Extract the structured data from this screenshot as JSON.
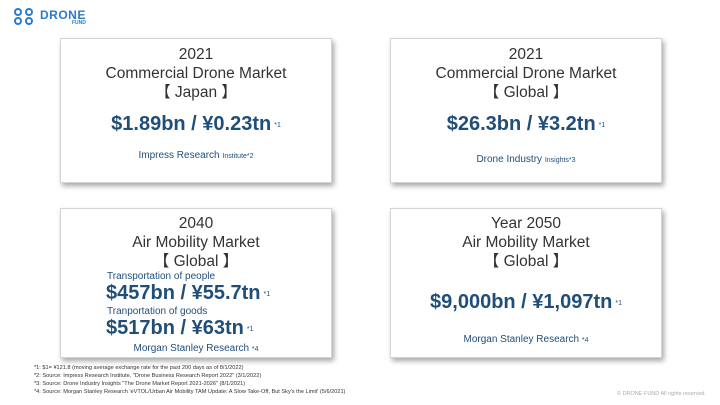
{
  "logo": {
    "main": "DRONE",
    "sub": "FUND"
  },
  "cards": [
    {
      "year": "2021",
      "title": "Commercial Drone Market",
      "region": "【 Japan 】",
      "value": "$1.89bn / ¥0.23tn",
      "note": "*1",
      "source": "Impress Research",
      "source_small": "Institute*2"
    },
    {
      "year": "2021",
      "title": "Commercial Drone Market",
      "region": "【 Global 】",
      "value": "$26.3bn / ¥3.2tn",
      "note": "*1",
      "source": "Drone Industry",
      "source_small": "Insights*3"
    },
    {
      "year": "2040",
      "title": "Air Mobility Market",
      "region": "【 Global 】",
      "people_label": "Transportation of people",
      "people_value": "$457bn / ¥55.7tn",
      "people_note": "*1",
      "goods_label": "Tranportation of goods",
      "goods_value": "$517bn / ¥63tn",
      "goods_note": "*1",
      "source": "Morgan Stanley Research",
      "source_small": "*4"
    },
    {
      "year": "Year 2050",
      "title": "Air Mobility Market",
      "region": "【 Global 】",
      "value": "$9,000bn / ¥1,097tn",
      "note": "*1",
      "source": "Morgan Stanley Research",
      "source_small": "*4"
    }
  ],
  "footnotes": [
    "*1: $1= ¥121.8 (moving average exchange rate for the past 200 days as of 8/1/2022)",
    "*2: Source: Impress Research Institute, \"Drone Business Research Report 2022\" (3/1/2022)",
    "*3: Source: Drone Industry Insights \"The Drone Market Report 2021-2026\" (8/1/2021)",
    "*4: Source: Morgan Stanley Research 'eVTOL/Urban Air Mobility TAM Update: A Slow Take-Off, But Sky's the Limit' (5/6/2021)"
  ],
  "copyright": "© DRONE FUND All rights reserved."
}
